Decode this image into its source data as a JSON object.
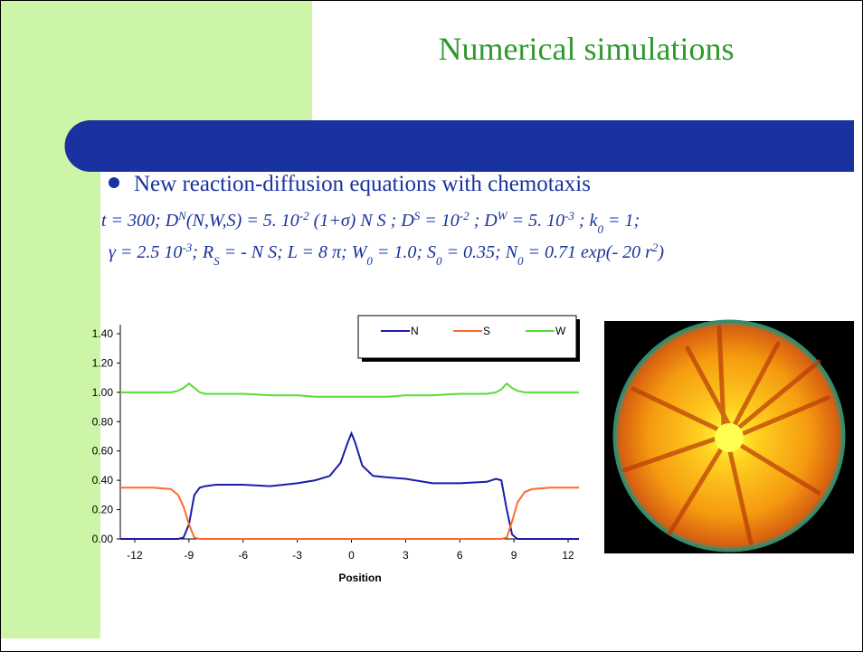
{
  "slide": {
    "title": "Numerical simulations",
    "bullet": "New reaction-diffusion equations with chemotaxis",
    "equations": [
      [
        "t = 300; D",
        "N",
        "(N,W,S) = 5. 10",
        "-2",
        " (1+σ) N S ; D",
        "S",
        " = 10",
        "-2",
        " ; D",
        "W",
        " = 5. 10",
        "-3",
        " ; k",
        "0",
        " = 1;"
      ],
      [
        "γ = 2.5 10",
        "-3",
        "; R",
        "S",
        " = - N S; L = 8 π; W",
        "0",
        " = 1.0; S",
        "0",
        " = 0.35; N",
        "0",
        " = 0.71 exp(- 20 r",
        "2",
        ")"
      ]
    ]
  },
  "chart_data": {
    "type": "line",
    "x": [
      -12.8,
      -11,
      -10,
      -9.6,
      -9.3,
      -9,
      -8.7,
      -8.4,
      -8.1,
      -7.5,
      -6,
      -4.5,
      -3,
      -2,
      -1.2,
      -0.6,
      -0.2,
      0,
      0.2,
      0.6,
      1.2,
      2,
      3,
      4.5,
      6,
      7.5,
      8,
      8.3,
      8.6,
      8.9,
      9.2,
      9.6,
      10,
      11,
      12.6
    ],
    "series": [
      {
        "name": "N",
        "color": "#1c1caa",
        "values": [
          0,
          0,
          0,
          0,
          0.01,
          0.1,
          0.3,
          0.35,
          0.36,
          0.37,
          0.37,
          0.36,
          0.38,
          0.4,
          0.43,
          0.52,
          0.66,
          0.72,
          0.66,
          0.5,
          0.43,
          0.42,
          0.41,
          0.38,
          0.38,
          0.39,
          0.41,
          0.4,
          0.2,
          0.03,
          0,
          0,
          0,
          0,
          0
        ]
      },
      {
        "name": "S",
        "color": "#ff6a2a",
        "values": [
          0.35,
          0.35,
          0.34,
          0.3,
          0.22,
          0.1,
          0.01,
          0,
          0,
          0,
          0,
          0,
          0,
          0,
          0,
          0,
          0,
          0,
          0,
          0,
          0,
          0,
          0,
          0,
          0,
          0,
          0,
          0,
          0.01,
          0.12,
          0.25,
          0.32,
          0.34,
          0.35,
          0.35
        ]
      },
      {
        "name": "W",
        "color": "#55dd33",
        "values": [
          1.0,
          1.0,
          1.0,
          1.01,
          1.03,
          1.06,
          1.03,
          1.0,
          0.99,
          0.99,
          0.99,
          0.98,
          0.98,
          0.97,
          0.97,
          0.97,
          0.97,
          0.97,
          0.97,
          0.97,
          0.97,
          0.97,
          0.98,
          0.98,
          0.99,
          0.99,
          1.0,
          1.02,
          1.06,
          1.03,
          1.01,
          1.0,
          1.0,
          1.0,
          1.0
        ]
      }
    ],
    "xlim": [
      -12.8,
      12.6
    ],
    "xticks": [
      -12,
      -9,
      -6,
      -3,
      0,
      3,
      6,
      9,
      12
    ],
    "ylim": [
      0,
      1.4
    ],
    "yticks": [
      {
        "value": 0,
        "label": "0.00"
      },
      {
        "value": 0.2,
        "label": "0.20"
      },
      {
        "value": 0.4,
        "label": "0.40"
      },
      {
        "value": 0.6,
        "label": "0.60"
      },
      {
        "value": 0.8,
        "label": "0.80"
      },
      {
        "value": 1.0,
        "label": "1.00"
      },
      {
        "value": 1.2,
        "label": "1.20"
      },
      {
        "value": 1.4,
        "label": "1.40"
      }
    ],
    "xlabel": "Position",
    "legend": "top-right"
  }
}
